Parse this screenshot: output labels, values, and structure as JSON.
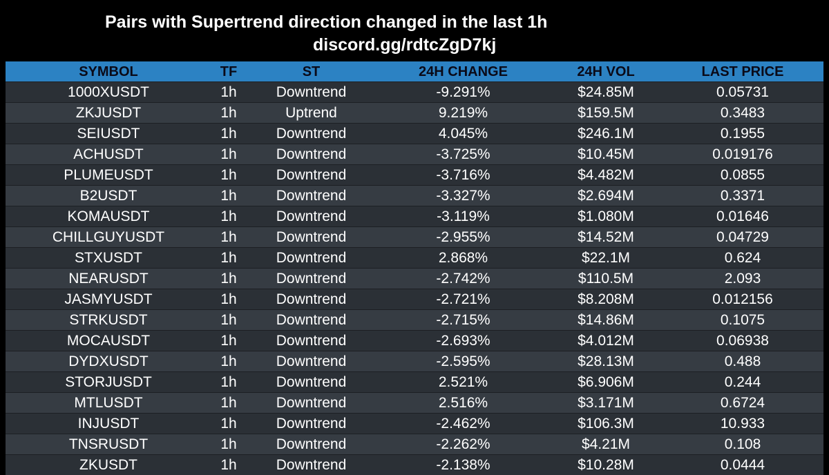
{
  "header": {
    "title": "Pairs with Supertrend direction changed in the last 1h",
    "subtitle": "discord.gg/rdtcZgD7kj"
  },
  "table": {
    "columns": [
      "SYMBOL",
      "TF",
      "ST",
      "24H CHANGE",
      "24H VOL",
      "LAST PRICE"
    ],
    "rows": [
      [
        "1000XUSDT",
        "1h",
        "Downtrend",
        "-9.291%",
        "$24.85M",
        "0.05731"
      ],
      [
        "ZKJUSDT",
        "1h",
        "Uptrend",
        "9.219%",
        "$159.5M",
        "0.3483"
      ],
      [
        "SEIUSDT",
        "1h",
        "Downtrend",
        "4.045%",
        "$246.1M",
        "0.1955"
      ],
      [
        "ACHUSDT",
        "1h",
        "Downtrend",
        "-3.725%",
        "$10.45M",
        "0.019176"
      ],
      [
        "PLUMEUSDT",
        "1h",
        "Downtrend",
        "-3.716%",
        "$4.482M",
        "0.0855"
      ],
      [
        "B2USDT",
        "1h",
        "Downtrend",
        "-3.327%",
        "$2.694M",
        "0.3371"
      ],
      [
        "KOMAUSDT",
        "1h",
        "Downtrend",
        "-3.119%",
        "$1.080M",
        "0.01646"
      ],
      [
        "CHILLGUYUSDT",
        "1h",
        "Downtrend",
        "-2.955%",
        "$14.52M",
        "0.04729"
      ],
      [
        "STXUSDT",
        "1h",
        "Downtrend",
        "2.868%",
        "$22.1M",
        "0.624"
      ],
      [
        "NEARUSDT",
        "1h",
        "Downtrend",
        "-2.742%",
        "$110.5M",
        "2.093"
      ],
      [
        "JASMYUSDT",
        "1h",
        "Downtrend",
        "-2.721%",
        "$8.208M",
        "0.012156"
      ],
      [
        "STRKUSDT",
        "1h",
        "Downtrend",
        "-2.715%",
        "$14.86M",
        "0.1075"
      ],
      [
        "MOCAUSDT",
        "1h",
        "Downtrend",
        "-2.693%",
        "$4.012M",
        "0.06938"
      ],
      [
        "DYDXUSDT",
        "1h",
        "Downtrend",
        "-2.595%",
        "$28.13M",
        "0.488"
      ],
      [
        "STORJUSDT",
        "1h",
        "Downtrend",
        "2.521%",
        "$6.906M",
        "0.244"
      ],
      [
        "MTLUSDT",
        "1h",
        "Downtrend",
        "2.516%",
        "$3.171M",
        "0.6724"
      ],
      [
        "INJUSDT",
        "1h",
        "Downtrend",
        "-2.462%",
        "$106.3M",
        "10.933"
      ],
      [
        "TNSRUSDT",
        "1h",
        "Downtrend",
        "-2.262%",
        "$4.21M",
        "0.108"
      ],
      [
        "ZKUSDT",
        "1h",
        "Downtrend",
        "-2.138%",
        "$10.28M",
        "0.0444"
      ]
    ]
  },
  "colors": {
    "background": "#000000",
    "header_bg": "#2c82c3",
    "row_dark": "#2b3036",
    "row_light": "#363c43",
    "text": "#ffffff"
  }
}
